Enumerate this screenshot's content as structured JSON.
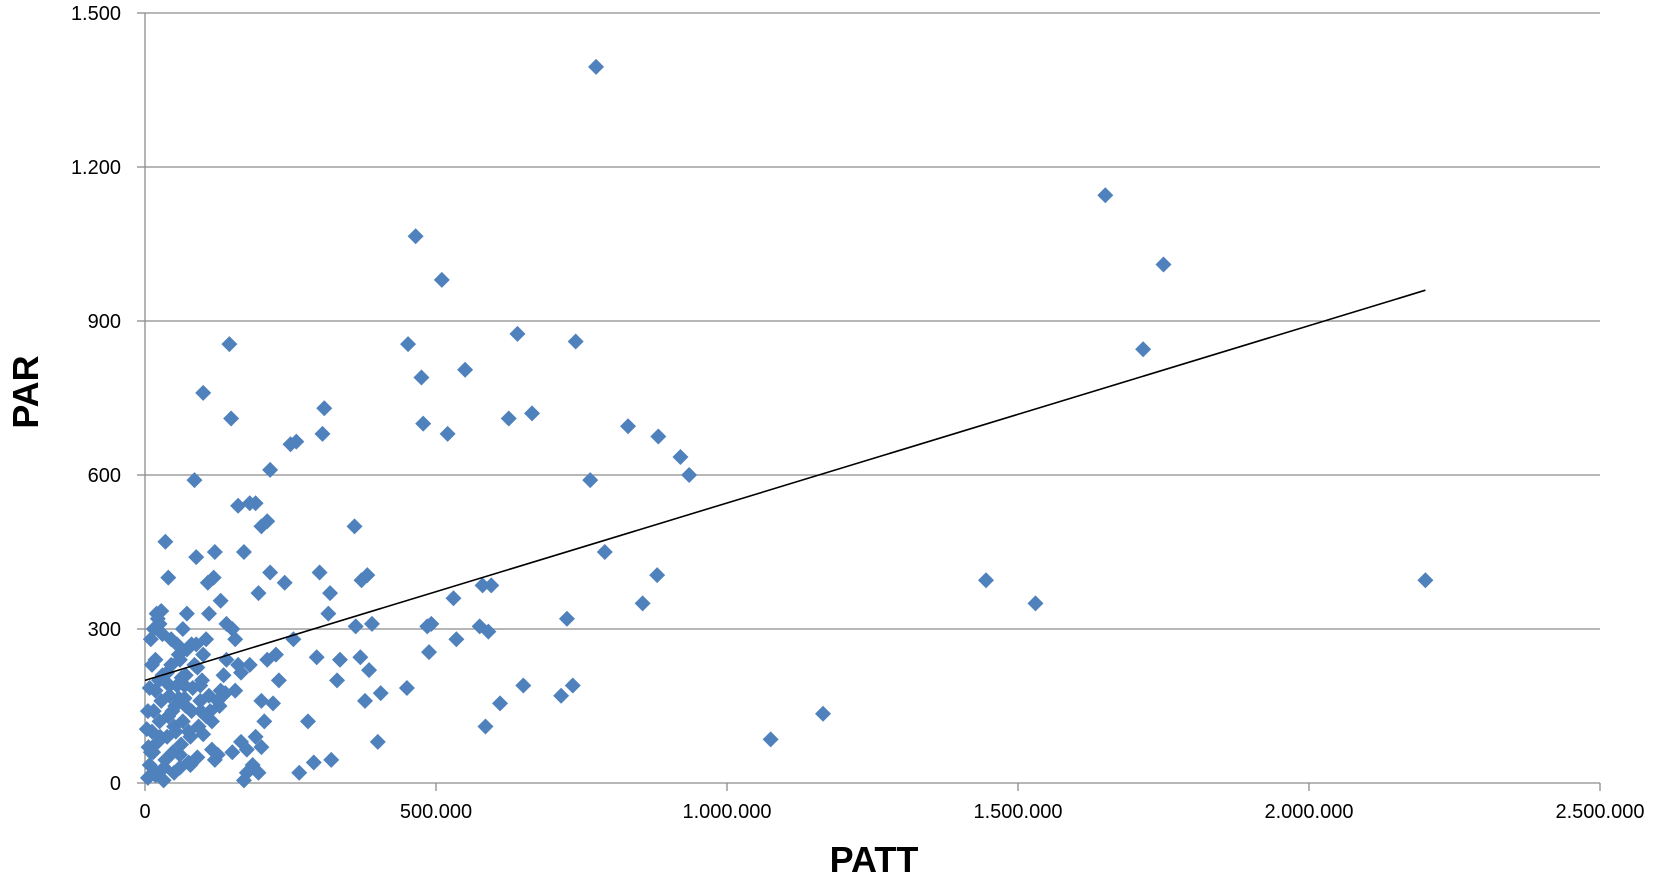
{
  "chart_data": {
    "type": "scatter",
    "title": "",
    "xlabel": "PATT",
    "ylabel": "PAR",
    "xlim": [
      0,
      2500000
    ],
    "ylim": [
      0,
      1500
    ],
    "xticks": [
      0,
      500000,
      1000000,
      1500000,
      2000000,
      2500000
    ],
    "xtick_labels": [
      "0",
      "500.000",
      "1.000.000",
      "1.500.000",
      "2.000.000",
      "2.500.000"
    ],
    "yticks": [
      0,
      300,
      600,
      900,
      1200,
      1500
    ],
    "ytick_labels": [
      "0",
      "300",
      "600",
      "900",
      "1.200",
      "1.500"
    ],
    "grid": "horizontal",
    "legend": "none",
    "colors": {
      "marker": "#4F81BD",
      "trendline": "#000000",
      "grid": "#8C8C8C",
      "axis": "#8C8C8C"
    },
    "trendline": {
      "type": "linear",
      "points": [
        [
          0,
          200
        ],
        [
          2200000,
          960
        ]
      ]
    },
    "points": [
      [
        5000,
        10
      ],
      [
        8000,
        35
      ],
      [
        10000,
        60
      ],
      [
        12000,
        100
      ],
      [
        15000,
        140
      ],
      [
        18000,
        180
      ],
      [
        20000,
        20
      ],
      [
        22000,
        80
      ],
      [
        25000,
        120
      ],
      [
        28000,
        160
      ],
      [
        30000,
        210
      ],
      [
        32000,
        5
      ],
      [
        35000,
        45
      ],
      [
        38000,
        90
      ],
      [
        40000,
        130
      ],
      [
        42000,
        170
      ],
      [
        45000,
        230
      ],
      [
        48000,
        60
      ],
      [
        50000,
        110
      ],
      [
        52000,
        150
      ],
      [
        55000,
        190
      ],
      [
        58000,
        250
      ],
      [
        60000,
        30
      ],
      [
        62000,
        75
      ],
      [
        65000,
        120
      ],
      [
        68000,
        165
      ],
      [
        70000,
        210
      ],
      [
        72000,
        260
      ],
      [
        75000,
        40
      ],
      [
        78000,
        90
      ],
      [
        80000,
        140
      ],
      [
        82000,
        185
      ],
      [
        85000,
        230
      ],
      [
        88000,
        270
      ],
      [
        90000,
        50
      ],
      [
        92000,
        110
      ],
      [
        95000,
        160
      ],
      [
        98000,
        200
      ],
      [
        100000,
        250
      ],
      [
        105000,
        130
      ],
      [
        110000,
        170
      ],
      [
        115000,
        120
      ],
      [
        120000,
        45
      ],
      [
        125000,
        160
      ],
      [
        130000,
        180
      ],
      [
        140000,
        240
      ],
      [
        150000,
        60
      ],
      [
        155000,
        180
      ],
      [
        160000,
        230
      ],
      [
        165000,
        80
      ],
      [
        170000,
        5
      ],
      [
        175000,
        20
      ],
      [
        180000,
        230
      ],
      [
        190000,
        90
      ],
      [
        195000,
        20
      ],
      [
        200000,
        160
      ],
      [
        205000,
        120
      ],
      [
        210000,
        240
      ],
      [
        215000,
        410
      ],
      [
        220000,
        155
      ],
      [
        230000,
        200
      ],
      [
        20000,
        330
      ],
      [
        25000,
        310
      ],
      [
        30000,
        290
      ],
      [
        35000,
        470
      ],
      [
        40000,
        400
      ],
      [
        10000,
        280
      ],
      [
        15000,
        300
      ],
      [
        22000,
        320
      ],
      [
        28000,
        335
      ],
      [
        55000,
        270
      ],
      [
        65000,
        300
      ],
      [
        72000,
        330
      ],
      [
        80000,
        270
      ],
      [
        85000,
        590
      ],
      [
        88000,
        440
      ],
      [
        95000,
        190
      ],
      [
        100000,
        760
      ],
      [
        105000,
        280
      ],
      [
        108000,
        390
      ],
      [
        110000,
        330
      ],
      [
        118000,
        400
      ],
      [
        120000,
        450
      ],
      [
        130000,
        355
      ],
      [
        140000,
        310
      ],
      [
        145000,
        855
      ],
      [
        148000,
        710
      ],
      [
        150000,
        300
      ],
      [
        155000,
        280
      ],
      [
        160000,
        540
      ],
      [
        170000,
        450
      ],
      [
        180000,
        545
      ],
      [
        190000,
        545
      ],
      [
        195000,
        370
      ],
      [
        200000,
        500
      ],
      [
        210000,
        510
      ],
      [
        215000,
        610
      ],
      [
        240000,
        390
      ],
      [
        250000,
        660
      ],
      [
        260000,
        665
      ],
      [
        255000,
        280
      ],
      [
        280000,
        120
      ],
      [
        290000,
        40
      ],
      [
        295000,
        245
      ],
      [
        300000,
        410
      ],
      [
        305000,
        680
      ],
      [
        308000,
        730
      ],
      [
        315000,
        330
      ],
      [
        318000,
        370
      ],
      [
        320000,
        45
      ],
      [
        330000,
        200
      ],
      [
        335000,
        240
      ],
      [
        360000,
        500
      ],
      [
        362000,
        305
      ],
      [
        370000,
        245
      ],
      [
        372000,
        395
      ],
      [
        378000,
        160
      ],
      [
        382000,
        405
      ],
      [
        385000,
        220
      ],
      [
        390000,
        310
      ],
      [
        400000,
        80
      ],
      [
        405000,
        175
      ],
      [
        450000,
        185
      ],
      [
        452000,
        855
      ],
      [
        465000,
        1065
      ],
      [
        475000,
        790
      ],
      [
        478000,
        700
      ],
      [
        485000,
        305
      ],
      [
        488000,
        255
      ],
      [
        492000,
        310
      ],
      [
        510000,
        980
      ],
      [
        520000,
        680
      ],
      [
        530000,
        360
      ],
      [
        535000,
        280
      ],
      [
        550000,
        805
      ],
      [
        575000,
        305
      ],
      [
        580000,
        385
      ],
      [
        585000,
        110
      ],
      [
        590000,
        295
      ],
      [
        595000,
        385
      ],
      [
        610000,
        155
      ],
      [
        625000,
        710
      ],
      [
        640000,
        875
      ],
      [
        650000,
        190
      ],
      [
        665000,
        720
      ],
      [
        715000,
        170
      ],
      [
        725000,
        320
      ],
      [
        735000,
        190
      ],
      [
        740000,
        860
      ],
      [
        765000,
        590
      ],
      [
        775000,
        1395
      ],
      [
        790000,
        450
      ],
      [
        830000,
        695
      ],
      [
        855000,
        350
      ],
      [
        880000,
        405
      ],
      [
        882000,
        675
      ],
      [
        920000,
        635
      ],
      [
        935000,
        600
      ],
      [
        1075000,
        85
      ],
      [
        1165000,
        135
      ],
      [
        1445000,
        395
      ],
      [
        1530000,
        350
      ],
      [
        1650000,
        1145
      ],
      [
        1715000,
        845
      ],
      [
        1750000,
        1010
      ],
      [
        2200000,
        395
      ],
      [
        5000,
        140
      ],
      [
        8000,
        185
      ],
      [
        12000,
        230
      ],
      [
        3000,
        105
      ],
      [
        6000,
        70
      ],
      [
        18000,
        15
      ],
      [
        45000,
        280
      ],
      [
        50000,
        20
      ],
      [
        60000,
        240
      ],
      [
        70000,
        150
      ],
      [
        75000,
        100
      ],
      [
        90000,
        225
      ],
      [
        115000,
        65
      ],
      [
        125000,
        55
      ],
      [
        135000,
        210
      ],
      [
        60000,
        55
      ],
      [
        42000,
        190
      ],
      [
        38000,
        215
      ],
      [
        58000,
        165
      ],
      [
        68000,
        190
      ],
      [
        78000,
        35
      ],
      [
        96000,
        140
      ],
      [
        100000,
        95
      ],
      [
        112000,
        140
      ],
      [
        128000,
        150
      ],
      [
        138000,
        175
      ],
      [
        165000,
        215
      ],
      [
        175000,
        65
      ],
      [
        185000,
        35
      ],
      [
        200000,
        70
      ],
      [
        265000,
        20
      ],
      [
        225000,
        250
      ],
      [
        18000,
        240
      ],
      [
        24000,
        200
      ],
      [
        14000,
        60
      ],
      [
        26000,
        90
      ],
      [
        33000,
        30
      ],
      [
        47000,
        140
      ],
      [
        53000,
        100
      ],
      [
        63000,
        205
      ]
    ]
  }
}
